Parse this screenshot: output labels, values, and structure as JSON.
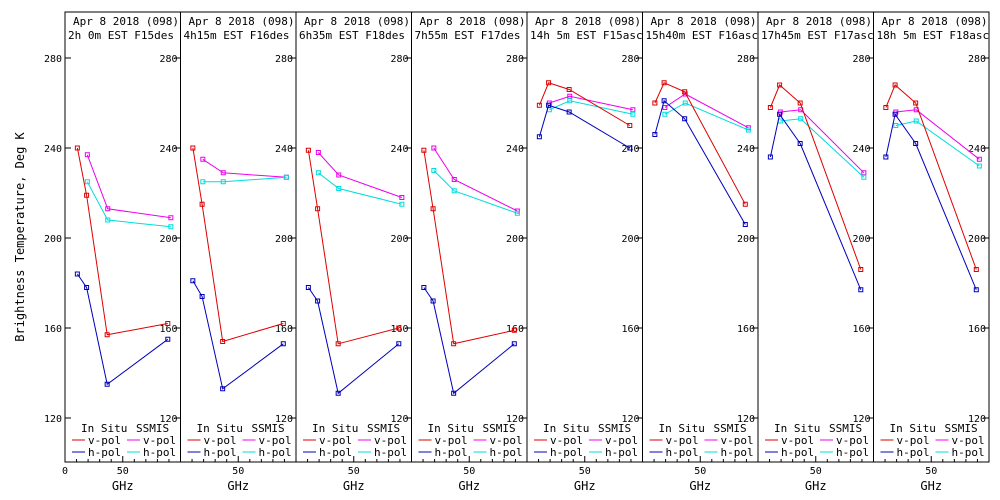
{
  "chart_data": {
    "type": "line",
    "ylabel": "Brightness Temperature, Deg K",
    "xlabel": "GHz",
    "xlim": [
      0,
      100
    ],
    "ylim": [
      110,
      290
    ],
    "xticks": [
      0,
      10,
      20,
      30,
      40,
      50,
      60,
      70,
      80,
      90,
      100
    ],
    "xtick_labels": [
      "0",
      "50"
    ],
    "yticks": [
      120,
      160,
      200,
      240,
      280
    ],
    "ytick_labels": [
      "120",
      "160",
      "200",
      "240",
      "280"
    ],
    "legend": {
      "in_situ_label": "In Situ",
      "ssmis_label": "SSMIS",
      "vpol_label": "v-pol",
      "hpol_label": "h-pol"
    },
    "colors": {
      "insitu_v": "#dd0000",
      "insitu_h": "#0000bb",
      "ssmis_v": "#ee00ee",
      "ssmis_h": "#00dddd"
    },
    "panels": [
      {
        "title1": "Apr 8 2018 (098)",
        "title2": "2h 0m EST F15des",
        "insitu_v": {
          "x": [
            10.7,
            18.7,
            36.5,
            89
          ],
          "y": [
            240,
            219,
            157,
            162
          ]
        },
        "insitu_h": {
          "x": [
            10.7,
            18.7,
            36.5,
            89
          ],
          "y": [
            184,
            178,
            135,
            155
          ]
        },
        "ssmis_v": {
          "x": [
            19.35,
            37,
            91.655
          ],
          "y": [
            237,
            213,
            209
          ]
        },
        "ssmis_h": {
          "x": [
            19.35,
            37,
            91.655
          ],
          "y": [
            225,
            208,
            205
          ]
        }
      },
      {
        "title1": "Apr 8 2018 (098)",
        "title2": "4h15m EST F16des",
        "insitu_v": {
          "x": [
            10.7,
            18.7,
            36.5,
            89
          ],
          "y": [
            240,
            215,
            154,
            162
          ]
        },
        "insitu_h": {
          "x": [
            10.7,
            18.7,
            36.5,
            89
          ],
          "y": [
            181,
            174,
            133,
            153
          ]
        },
        "ssmis_v": {
          "x": [
            19.35,
            37,
            91.655
          ],
          "y": [
            235,
            229,
            227
          ]
        },
        "ssmis_h": {
          "x": [
            19.35,
            37,
            91.655
          ],
          "y": [
            225,
            225,
            227
          ]
        }
      },
      {
        "title1": "Apr 8 2018 (098)",
        "title2": "6h35m EST F18des",
        "insitu_v": {
          "x": [
            10.7,
            18.7,
            36.5,
            89
          ],
          "y": [
            239,
            213,
            153,
            160
          ]
        },
        "insitu_h": {
          "x": [
            10.7,
            18.7,
            36.5,
            89
          ],
          "y": [
            178,
            172,
            131,
            153
          ]
        },
        "ssmis_v": {
          "x": [
            19.35,
            37,
            91.655
          ],
          "y": [
            238,
            228,
            218
          ]
        },
        "ssmis_h": {
          "x": [
            19.35,
            37,
            91.655
          ],
          "y": [
            229,
            222,
            215
          ]
        }
      },
      {
        "title1": "Apr 8 2018 (098)",
        "title2": "7h55m EST F17des",
        "insitu_v": {
          "x": [
            10.7,
            18.7,
            36.5,
            89
          ],
          "y": [
            239,
            213,
            153,
            159
          ]
        },
        "insitu_h": {
          "x": [
            10.7,
            18.7,
            36.5,
            89
          ],
          "y": [
            178,
            172,
            131,
            153
          ]
        },
        "ssmis_v": {
          "x": [
            19.35,
            37,
            91.655
          ],
          "y": [
            240,
            226,
            212
          ]
        },
        "ssmis_h": {
          "x": [
            19.35,
            37,
            91.655
          ],
          "y": [
            230,
            221,
            211
          ]
        }
      },
      {
        "title1": "Apr 8 2018 (098)",
        "title2": "14h 5m EST F15asc",
        "insitu_v": {
          "x": [
            10.7,
            18.7,
            36.5,
            89
          ],
          "y": [
            259,
            269,
            266,
            250
          ]
        },
        "insitu_h": {
          "x": [
            10.7,
            18.7,
            36.5,
            89
          ],
          "y": [
            245,
            259,
            256,
            240
          ]
        },
        "ssmis_v": {
          "x": [
            19.35,
            37,
            91.655
          ],
          "y": [
            260,
            263,
            257
          ]
        },
        "ssmis_h": {
          "x": [
            19.35,
            37,
            91.655
          ],
          "y": [
            257,
            261,
            255
          ]
        }
      },
      {
        "title1": "Apr 8 2018 (098)",
        "title2": "15h40m EST F16asc",
        "insitu_v": {
          "x": [
            10.7,
            18.7,
            36.5,
            89
          ],
          "y": [
            260,
            269,
            265,
            215
          ]
        },
        "insitu_h": {
          "x": [
            10.7,
            18.7,
            36.5,
            89
          ],
          "y": [
            246,
            261,
            253,
            206
          ]
        },
        "ssmis_v": {
          "x": [
            19.35,
            37,
            91.655
          ],
          "y": [
            258,
            264,
            249
          ]
        },
        "ssmis_h": {
          "x": [
            19.35,
            37,
            91.655
          ],
          "y": [
            255,
            260,
            248
          ]
        }
      },
      {
        "title1": "Apr 8 2018 (098)",
        "title2": "17h45m EST F17asc",
        "insitu_v": {
          "x": [
            10.7,
            18.7,
            36.5,
            89
          ],
          "y": [
            258,
            268,
            260,
            186
          ]
        },
        "insitu_h": {
          "x": [
            10.7,
            18.7,
            36.5,
            89
          ],
          "y": [
            236,
            255,
            242,
            177
          ]
        },
        "ssmis_v": {
          "x": [
            19.35,
            37,
            91.655
          ],
          "y": [
            256,
            257,
            229
          ]
        },
        "ssmis_h": {
          "x": [
            19.35,
            37,
            91.655
          ],
          "y": [
            252,
            253,
            227
          ]
        }
      },
      {
        "title1": "Apr 8 2018 (098)",
        "title2": "18h 5m EST F18asc",
        "insitu_v": {
          "x": [
            10.7,
            18.7,
            36.5,
            89
          ],
          "y": [
            258,
            268,
            260,
            186
          ]
        },
        "insitu_h": {
          "x": [
            10.7,
            18.7,
            36.5,
            89
          ],
          "y": [
            236,
            255,
            242,
            177
          ]
        },
        "ssmis_v": {
          "x": [
            19.35,
            37,
            91.655
          ],
          "y": [
            256,
            257,
            235
          ]
        },
        "ssmis_h": {
          "x": [
            19.35,
            37,
            91.655
          ],
          "y": [
            250,
            252,
            232
          ]
        }
      }
    ]
  }
}
